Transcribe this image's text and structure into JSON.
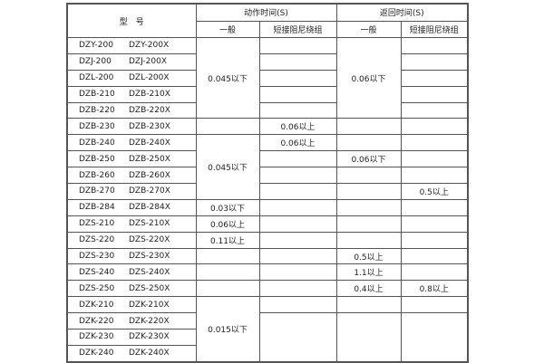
{
  "header": {
    "model": "型　号",
    "action_time": "动作时间(S)",
    "return_time": "返回时间(S)",
    "general": "一般",
    "short_winding": "短接阻尼绕组"
  },
  "rows": [
    {
      "model_a": "DZY-200",
      "model_b": "DZY-200X",
      "action_general": "0.045以下",
      "action_short": "",
      "return_general": "0.06以下",
      "return_short": ""
    },
    {
      "model_a": "DZJ-200",
      "model_b": "DZJ-200X",
      "action_general": null,
      "action_short": "",
      "return_general": null,
      "return_short": ""
    },
    {
      "model_a": "DZL-200",
      "model_b": "DZL-200X",
      "action_general": null,
      "action_short": "",
      "return_general": null,
      "return_short": ""
    },
    {
      "model_a": "DZB-210",
      "model_b": "DZB-210X",
      "action_general": null,
      "action_short": "",
      "return_general": null,
      "return_short": ""
    },
    {
      "model_a": "DZB-220",
      "model_b": "DZB-220X",
      "action_general": null,
      "action_short": "",
      "return_general": null,
      "return_short": ""
    },
    {
      "model_a": "DZB-230",
      "model_b": "DZB-230X",
      "action_general": "",
      "action_short": "0.06以上",
      "return_general": "",
      "return_short": ""
    },
    {
      "model_a": "DZB-240",
      "model_b": "DZB-240X",
      "action_general": "0.045以下",
      "action_short": "0.06以上",
      "return_general": "",
      "return_short": ""
    },
    {
      "model_a": "DZB-250",
      "model_b": "DZB-250X",
      "action_general": null,
      "action_short": "",
      "return_general": "0.06以下",
      "return_short": ""
    },
    {
      "model_a": "DZB-260",
      "model_b": "DZB-260X",
      "action_general": null,
      "action_short": "",
      "return_general": "",
      "return_short": ""
    },
    {
      "model_a": "DZB-270",
      "model_b": "DZB-270X",
      "action_general": null,
      "action_short": "",
      "return_general": "",
      "return_short": "0.5以上"
    },
    {
      "model_a": "DZB-284",
      "model_b": "DZB-284X",
      "action_general": "0.03以下",
      "action_short": "",
      "return_general": "",
      "return_short": ""
    },
    {
      "model_a": "DZS-210",
      "model_b": "DZS-210X",
      "action_general": "0.06以上",
      "action_short": "",
      "return_general": "",
      "return_short": ""
    },
    {
      "model_a": "DZS-220",
      "model_b": "DZS-220X",
      "action_general": "0.11以上",
      "action_short": "",
      "return_general": "",
      "return_short": ""
    },
    {
      "model_a": "DZS-230",
      "model_b": "DZS-230X",
      "action_general": "",
      "action_short": "",
      "return_general": "0.5以上",
      "return_short": ""
    },
    {
      "model_a": "DZS-240",
      "model_b": "DZS-240X",
      "action_general": "",
      "action_short": "",
      "return_general": "1.1以上",
      "return_short": ""
    },
    {
      "model_a": "DZS-250",
      "model_b": "DZS-250X",
      "action_general": "",
      "action_short": "",
      "return_general": "0.4以上",
      "return_short": "0.8以上"
    },
    {
      "model_a": "DZK-210",
      "model_b": "DZK-210X",
      "action_general": "0.015以下",
      "action_short": "",
      "return_general": "",
      "return_short": ""
    },
    {
      "model_a": "DZK-220",
      "model_b": "DZK-220X",
      "action_general": null,
      "action_short": "",
      "return_general": "",
      "return_short": ""
    },
    {
      "model_a": "DZK-230",
      "model_b": "DZK-230X",
      "action_general": null,
      "action_short": null,
      "return_general": null,
      "return_short": null
    },
    {
      "model_a": "DZK-240",
      "model_b": "DZK-240X",
      "action_general": null,
      "action_short": null,
      "return_general": null,
      "return_short": null
    }
  ]
}
